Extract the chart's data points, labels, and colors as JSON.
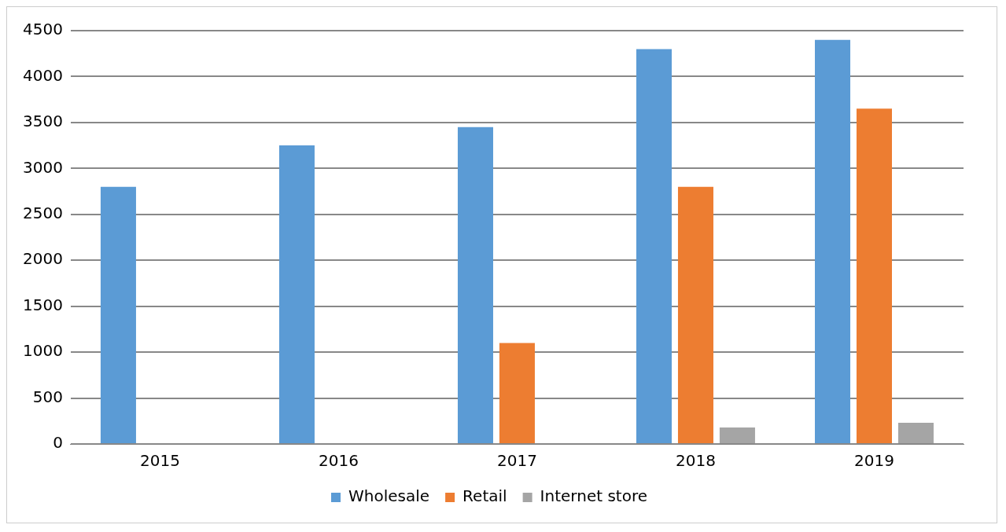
{
  "chart_data": {
    "type": "bar",
    "categories": [
      "2015",
      "2016",
      "2017",
      "2018",
      "2019"
    ],
    "series": [
      {
        "name": "Wholesale",
        "color": "#5b9bd5",
        "values": [
          2800,
          3250,
          3450,
          4300,
          4400
        ]
      },
      {
        "name": "Retail",
        "color": "#ed7d31",
        "values": [
          0,
          0,
          1100,
          2800,
          3650
        ]
      },
      {
        "name": "Internet store",
        "color": "#a5a5a5",
        "values": [
          0,
          0,
          0,
          180,
          230
        ]
      }
    ],
    "ylim": [
      0,
      4500
    ],
    "yticks": [
      0,
      500,
      1000,
      1500,
      2000,
      2500,
      3000,
      3500,
      4000,
      4500
    ],
    "grid": "y",
    "legend": "bottom"
  }
}
